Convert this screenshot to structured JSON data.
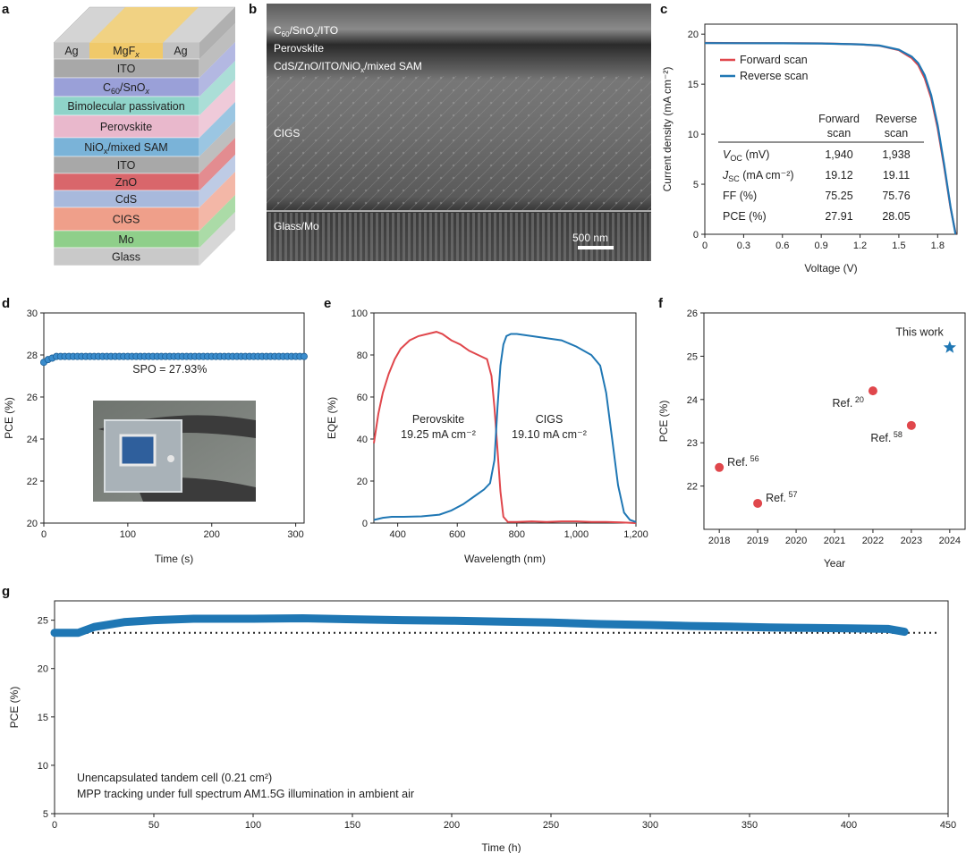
{
  "colors": {
    "red": "#e0474c",
    "blue": "#1f77b4",
    "blue_marker": "#3a8ccc",
    "gray_axis": "#222222"
  },
  "panels": {
    "a": {
      "label": "a",
      "top_layer": {
        "left": "Ag",
        "center": "MgF",
        "center_sub": "x",
        "right": "Ag"
      },
      "layers": [
        {
          "name": "ITO",
          "sub": "",
          "tail": "",
          "color": "#a8a8a8"
        },
        {
          "name": "C",
          "sub": "60",
          "tail": "/SnO",
          "tail_sub": "x",
          "color": "#9aa0d8"
        },
        {
          "name": "Bimolecular passivation",
          "sub": "",
          "tail": "",
          "color": "#8fd3c9"
        },
        {
          "name": "Perovskite",
          "sub": "",
          "tail": "",
          "color": "#e9b8cc"
        },
        {
          "name": "NiO",
          "sub": "x",
          "tail": "/mixed SAM",
          "color": "#7ab3d8"
        },
        {
          "name": "ITO",
          "sub": "",
          "tail": "",
          "color": "#a8a8a8"
        },
        {
          "name": "ZnO",
          "sub": "",
          "tail": "",
          "color": "#d9666b"
        },
        {
          "name": "CdS",
          "sub": "",
          "tail": "",
          "color": "#a8b9dc"
        },
        {
          "name": "CIGS",
          "sub": "",
          "tail": "",
          "color": "#ef9f8a"
        },
        {
          "name": "Mo",
          "sub": "",
          "tail": "",
          "color": "#8fcf8a"
        },
        {
          "name": "Glass",
          "sub": "",
          "tail": "",
          "color": "#c9c9c9"
        }
      ]
    },
    "b": {
      "label": "b",
      "labels": [
        "C60/SnOx/ITO",
        "Perovskite",
        "CdS/ZnO/ITO/NiOx/mixed SAM",
        "CIGS",
        "Glass/Mo"
      ],
      "scale_bar": "500 nm"
    },
    "c": {
      "label": "c"
    },
    "d": {
      "label": "d"
    },
    "e": {
      "label": "e"
    },
    "f": {
      "label": "f"
    },
    "g": {
      "label": "g"
    }
  },
  "chart_data": [
    {
      "id": "c",
      "type": "line",
      "xlabel": "Voltage (V)",
      "ylabel": "Current density (mA cm⁻²)",
      "xlim": [
        0,
        1.95
      ],
      "ylim": [
        0,
        21
      ],
      "xticks": [
        "0",
        "0.3",
        "0.6",
        "0.9",
        "1.2",
        "1.5",
        "1.8"
      ],
      "xtick_values": [
        0,
        0.3,
        0.6,
        0.9,
        1.2,
        1.5,
        1.8
      ],
      "yticks": [
        "0",
        "5",
        "10",
        "15",
        "20"
      ],
      "ytick_values": [
        0,
        5,
        10,
        15,
        20
      ],
      "series": [
        {
          "name": "Forward scan",
          "color": "#e0474c",
          "jsc": 19.12,
          "voc": 1.94,
          "x": [
            0,
            0.3,
            0.6,
            0.9,
            1.2,
            1.35,
            1.5,
            1.6,
            1.65,
            1.7,
            1.75,
            1.8,
            1.85,
            1.9,
            1.94
          ],
          "y": [
            19.12,
            19.11,
            19.1,
            19.08,
            18.98,
            18.85,
            18.4,
            17.6,
            16.9,
            15.6,
            13.6,
            10.6,
            6.8,
            2.6,
            0
          ]
        },
        {
          "name": "Reverse scan",
          "color": "#1f77b4",
          "jsc": 19.11,
          "voc": 1.938,
          "x": [
            0,
            0.3,
            0.6,
            0.9,
            1.2,
            1.35,
            1.5,
            1.6,
            1.65,
            1.7,
            1.75,
            1.8,
            1.85,
            1.9,
            1.938
          ],
          "y": [
            19.11,
            19.1,
            19.09,
            19.07,
            18.98,
            18.86,
            18.45,
            17.75,
            17.1,
            15.9,
            13.9,
            10.9,
            7.0,
            2.7,
            0
          ]
        }
      ],
      "table": {
        "headers": [
          [
            "Forward",
            "scan"
          ],
          [
            "Reverse",
            "scan"
          ]
        ],
        "rows": [
          {
            "label": "V",
            "sub": "OC",
            "unit": " (mV)",
            "forward": "1,940",
            "reverse": "1,938"
          },
          {
            "label": "J",
            "sub": "SC",
            "unit": " (mA cm⁻²)",
            "forward": "19.12",
            "reverse": "19.11"
          },
          {
            "label": "FF",
            "sub": "",
            "unit": " (%)",
            "forward": "75.25",
            "reverse": "75.76"
          },
          {
            "label": "PCE",
            "sub": "",
            "unit": " (%)",
            "forward": "27.91",
            "reverse": "28.05"
          }
        ]
      }
    },
    {
      "id": "d",
      "type": "scatter",
      "xlabel": "Time (s)",
      "ylabel": "PCE (%)",
      "xlim": [
        0,
        310
      ],
      "ylim": [
        20,
        30
      ],
      "xticks": [
        "0",
        "100",
        "200",
        "300"
      ],
      "xtick_values": [
        0,
        100,
        200,
        300
      ],
      "yticks": [
        "20",
        "22",
        "24",
        "26",
        "28",
        "30"
      ],
      "ytick_values": [
        20,
        22,
        24,
        26,
        28,
        30
      ],
      "series": [
        {
          "name": "SPO",
          "color": "#3a8ccc",
          "start": 27.65,
          "plateau": 27.93,
          "step": 5,
          "tmax": 310
        }
      ],
      "annotation": "SPO = 27.93%"
    },
    {
      "id": "e",
      "type": "line",
      "xlabel": "Wavelength (nm)",
      "ylabel": "EQE (%)",
      "xlim": [
        320,
        1200
      ],
      "ylim": [
        0,
        100
      ],
      "xticks": [
        "400",
        "600",
        "800",
        "1,000",
        "1,200"
      ],
      "xtick_values": [
        400,
        600,
        800,
        1000,
        1200
      ],
      "yticks": [
        "0",
        "20",
        "40",
        "60",
        "80",
        "100"
      ],
      "ytick_values": [
        0,
        20,
        40,
        60,
        80,
        100
      ],
      "series": [
        {
          "name": "Perovskite",
          "jsc_label": "19.25 mA cm⁻²",
          "color": "#e0474c",
          "x": [
            320,
            335,
            350,
            370,
            390,
            410,
            440,
            470,
            500,
            530,
            550,
            580,
            610,
            640,
            670,
            700,
            715,
            725,
            735,
            745,
            755,
            770,
            800,
            850,
            900,
            950,
            1000,
            1050,
            1100,
            1150,
            1200
          ],
          "y": [
            38,
            52,
            62,
            71,
            78,
            83,
            87,
            89,
            90,
            91,
            90,
            87,
            85,
            82,
            80,
            78,
            70,
            55,
            35,
            15,
            3,
            0.5,
            0.5,
            0.8,
            0.5,
            0.8,
            0.8,
            0.5,
            0.5,
            0.3,
            0
          ]
        },
        {
          "name": "CIGS",
          "jsc_label": "19.10 mA cm⁻²",
          "color": "#1f77b4",
          "x": [
            320,
            350,
            380,
            420,
            480,
            540,
            580,
            620,
            660,
            690,
            710,
            725,
            735,
            745,
            755,
            765,
            780,
            800,
            850,
            900,
            950,
            1000,
            1050,
            1080,
            1100,
            1120,
            1140,
            1160,
            1180,
            1200
          ],
          "y": [
            1.5,
            2.5,
            3,
            3,
            3.2,
            4,
            6,
            9,
            13,
            16,
            19,
            30,
            55,
            75,
            85,
            89,
            90,
            90,
            89,
            88,
            87,
            84,
            80,
            75,
            62,
            40,
            18,
            5,
            1.5,
            0.5
          ]
        }
      ]
    },
    {
      "id": "f",
      "type": "scatter",
      "xlabel": "Year",
      "ylabel": "PCE (%)",
      "xlim": [
        2017.6,
        2024.4
      ],
      "ylim": [
        21,
        26
      ],
      "xticks": [
        "2018",
        "2019",
        "2020",
        "2021",
        "2022",
        "2023",
        "2024"
      ],
      "xtick_values": [
        2018,
        2019,
        2020,
        2021,
        2022,
        2023,
        2024
      ],
      "yticks": [
        "22",
        "23",
        "24",
        "25",
        "26"
      ],
      "ytick_values": [
        22,
        23,
        24,
        25,
        26
      ],
      "points": [
        {
          "x": 2018,
          "y": 22.43,
          "label": "Ref.",
          "ref": "56",
          "color": "#e0474c",
          "marker": "circle"
        },
        {
          "x": 2019,
          "y": 21.6,
          "label": "Ref.",
          "ref": "57",
          "color": "#e0474c",
          "marker": "circle"
        },
        {
          "x": 2022,
          "y": 24.2,
          "label": "Ref.",
          "ref": "20",
          "color": "#e0474c",
          "marker": "circle"
        },
        {
          "x": 2023,
          "y": 23.4,
          "label": "Ref.",
          "ref": "58",
          "color": "#e0474c",
          "marker": "circle"
        },
        {
          "x": 2024,
          "y": 25.2,
          "label": "This work",
          "ref": "",
          "color": "#1f77b4",
          "marker": "star"
        }
      ]
    },
    {
      "id": "g",
      "type": "line",
      "xlabel": "Time (h)",
      "ylabel": "PCE (%)",
      "xlim": [
        0,
        450
      ],
      "ylim": [
        5,
        27
      ],
      "xticks": [
        "0",
        "50",
        "100",
        "150",
        "200",
        "250",
        "300",
        "350",
        "400",
        "450"
      ],
      "xtick_values": [
        0,
        50,
        100,
        150,
        200,
        250,
        300,
        350,
        400,
        450
      ],
      "yticks": [
        "5",
        "10",
        "15",
        "20",
        "25"
      ],
      "ytick_values": [
        5,
        10,
        15,
        20,
        25
      ],
      "reference_level": 23.7,
      "series": [
        {
          "name": "MPP tracking",
          "color": "#1f77b4",
          "x": [
            0,
            12,
            20,
            35,
            50,
            70,
            100,
            125,
            150,
            175,
            200,
            225,
            250,
            275,
            300,
            320,
            340,
            360,
            380,
            400,
            420,
            428
          ],
          "y": [
            23.7,
            23.7,
            24.3,
            24.8,
            25.0,
            25.15,
            25.15,
            25.2,
            25.1,
            25.0,
            24.95,
            24.85,
            24.75,
            24.6,
            24.5,
            24.4,
            24.35,
            24.25,
            24.2,
            24.15,
            24.1,
            23.8
          ]
        }
      ],
      "annotations": [
        "Unencapsulated tandem cell (0.21 cm²)",
        "MPP tracking under full spectrum AM1.5G illumination in ambient air"
      ]
    }
  ]
}
